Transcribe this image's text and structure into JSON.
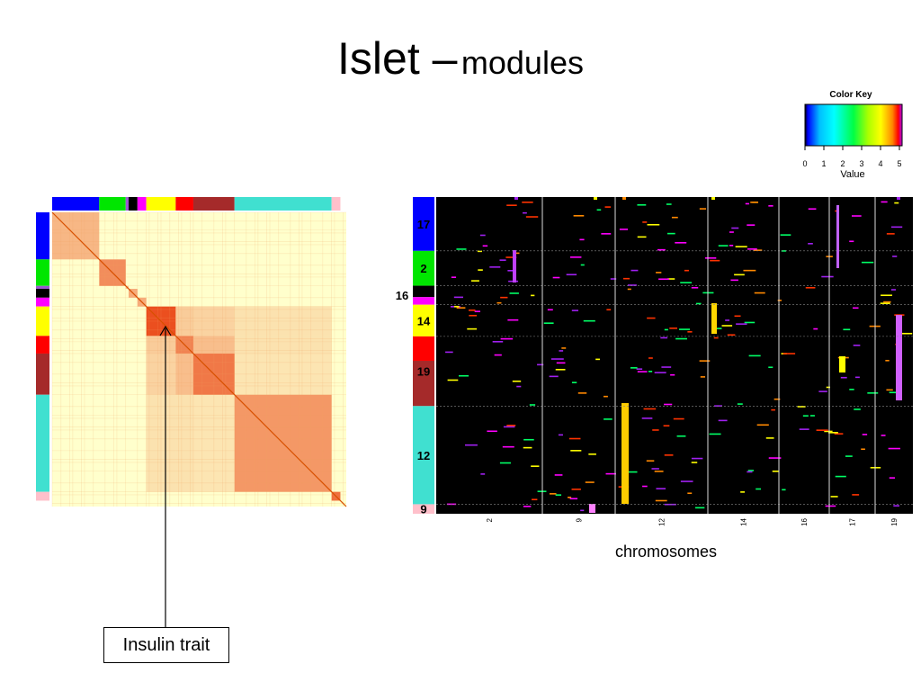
{
  "slide": {
    "title_main": "Islet –",
    "title_sub": "modules",
    "callout_label": "Insulin trait",
    "x_axis_label": "chromosomes"
  },
  "colors": {
    "module_blue": "#0000ff",
    "module_green": "#00e600",
    "module_purple": "#9b59d0",
    "module_black": "#000000",
    "module_magenta": "#ff00ff",
    "module_yellow": "#ffff00",
    "module_red": "#ff0000",
    "module_brown": "#a52a2a",
    "module_turquoise": "#40e0d0",
    "module_pink": "#ffc0cb",
    "heat_low": "#ffffcc",
    "heat_high": "#e83000"
  },
  "color_key": {
    "title": "Color Key",
    "label": "Value",
    "ticks": [
      "0",
      "1",
      "2",
      "3",
      "4",
      "5"
    ],
    "range": [
      0,
      5
    ]
  },
  "chart_data": [
    {
      "type": "heatmap",
      "title": "",
      "description_axis": "module correlation matrix",
      "modules": [
        {
          "color": "blue",
          "fraction": 0.16
        },
        {
          "color": "green",
          "fraction": 0.09
        },
        {
          "color": "purple",
          "fraction": 0.01
        },
        {
          "color": "black",
          "fraction": 0.03
        },
        {
          "color": "magenta",
          "fraction": 0.03
        },
        {
          "color": "yellow",
          "fraction": 0.1
        },
        {
          "color": "red",
          "fraction": 0.06
        },
        {
          "color": "brown",
          "fraction": 0.14
        },
        {
          "color": "turquoise",
          "fraction": 0.33
        },
        {
          "color": "pink",
          "fraction": 0.03
        }
      ]
    },
    {
      "type": "heatmap",
      "title": "",
      "xlabel": "chromosomes",
      "x_ticks": [
        "2",
        "9",
        "12",
        "14",
        "16",
        "17",
        "19"
      ],
      "row_modules": [
        {
          "label": "17",
          "color": "blue"
        },
        {
          "label": "2",
          "color": "green"
        },
        {
          "label": "16",
          "color": "black"
        },
        {
          "label": "14",
          "color": "yellow"
        },
        {
          "label": "19",
          "color": "red"
        },
        {
          "label": "12",
          "color": "turquoise"
        },
        {
          "label": "9",
          "color": "pink"
        }
      ],
      "value_range": [
        0,
        5
      ]
    }
  ]
}
